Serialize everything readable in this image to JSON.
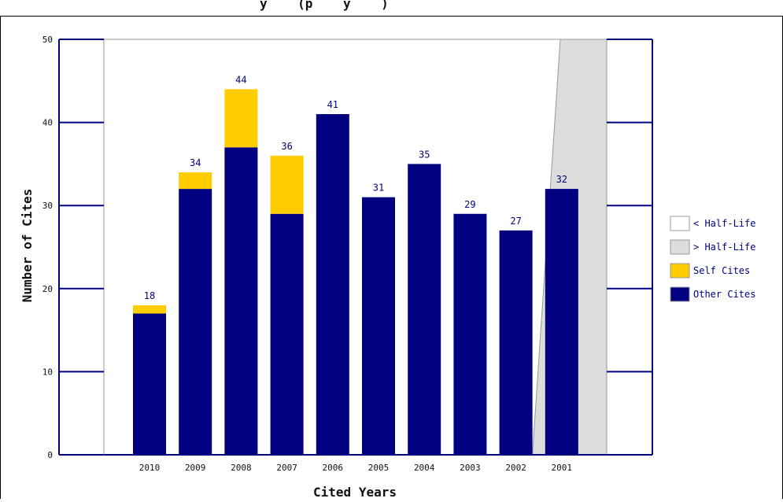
{
  "chart_data": {
    "type": "bar",
    "title_fragment": "y    (p    y    )",
    "xlabel": "Cited Years",
    "ylabel": "Number of Cites",
    "ylim": [
      0,
      50
    ],
    "yticks": [
      0,
      10,
      20,
      30,
      40,
      50
    ],
    "categories": [
      "2010",
      "2009",
      "2008",
      "2007",
      "2006",
      "2005",
      "2004",
      "2003",
      "2002",
      "2001"
    ],
    "series": [
      {
        "name": "Other Cites",
        "color": "#000080",
        "values": [
          17,
          32,
          37,
          29,
          41,
          31,
          35,
          29,
          27,
          32
        ]
      },
      {
        "name": "Self Cites",
        "color": "#ffcc00",
        "values": [
          1,
          2,
          7,
          7,
          0,
          0,
          0,
          0,
          0,
          0
        ]
      }
    ],
    "totals": [
      18,
      34,
      44,
      36,
      41,
      31,
      35,
      29,
      27,
      32
    ],
    "stacked": true,
    "half_life_region": {
      "start_category": "2002",
      "end_category": "2001"
    },
    "grid": false,
    "legend_position": "right",
    "legend": [
      {
        "label": "< Half-Life",
        "color": "#ffffff"
      },
      {
        "label": "> Half-Life",
        "color": "#dcdcdc"
      },
      {
        "label": "Self Cites",
        "color": "#ffcc00"
      },
      {
        "label": "Other Cites",
        "color": "#000080"
      }
    ]
  }
}
